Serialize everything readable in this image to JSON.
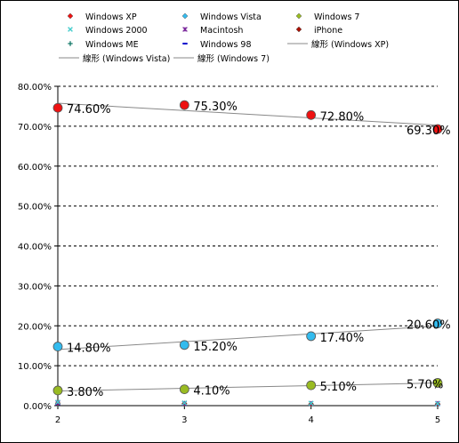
{
  "chart_data": {
    "type": "scatter",
    "title": "",
    "xlabel": "",
    "ylabel": "",
    "x": [
      2,
      3,
      4,
      5
    ],
    "x_ticks": [
      "2",
      "3",
      "4",
      "5"
    ],
    "xlim": [
      2,
      5
    ],
    "ylim": [
      0,
      0.8
    ],
    "y_ticks": [
      "0.00%",
      "10.00%",
      "20.00%",
      "30.00%",
      "40.00%",
      "50.00%",
      "60.00%",
      "70.00%",
      "80.00%"
    ],
    "grid": "horizontal dashed",
    "legend_position": "top",
    "series": [
      {
        "name": "Windows XP",
        "marker": "diamond",
        "color": "#ee1111",
        "values": [
          0.746,
          0.753,
          0.728,
          0.693
        ],
        "labels": [
          "74.60%",
          "75.30%",
          "72.80%",
          "69.30%"
        ]
      },
      {
        "name": "Windows Vista",
        "marker": "diamond",
        "color": "#33bbee",
        "values": [
          0.148,
          0.152,
          0.174,
          0.206
        ],
        "labels": [
          "14.80%",
          "15.20%",
          "17.40%",
          "20.60%"
        ]
      },
      {
        "name": "Windows 7",
        "marker": "diamond",
        "color": "#99bb22",
        "values": [
          0.038,
          0.041,
          0.051,
          0.057
        ],
        "labels": [
          "3.80%",
          "4.10%",
          "5.10%",
          "5.70%"
        ]
      },
      {
        "name": "Windows 2000",
        "marker": "x",
        "color": "#44cccc",
        "values": [
          0.009,
          0.007,
          0.006,
          0.005
        ],
        "labels": []
      },
      {
        "name": "Macintosh",
        "marker": "star",
        "color": "#772299",
        "values": [
          0.007,
          0.006,
          0.006,
          0.006
        ],
        "labels": []
      },
      {
        "name": "iPhone",
        "marker": "diamond",
        "color": "#aa1100",
        "values": [
          0.006,
          0.005,
          0.004,
          0.004
        ],
        "labels": []
      },
      {
        "name": "Windows ME",
        "marker": "plus",
        "color": "#117766",
        "values": [
          0.004,
          0.003,
          0.002,
          0.002
        ],
        "labels": []
      },
      {
        "name": "Windows 98",
        "marker": "dash",
        "color": "#0000cc",
        "values": [
          0.003,
          0.002,
          0.002,
          0.001
        ],
        "labels": []
      }
    ],
    "trendlines": [
      {
        "name": "線形 (Windows XP)",
        "of": "Windows XP",
        "type": "linear",
        "color": "#888888"
      },
      {
        "name": "線形 (Windows Vista)",
        "of": "Windows Vista",
        "type": "linear",
        "color": "#888888"
      },
      {
        "name": "線形 (Windows 7)",
        "of": "Windows 7",
        "type": "linear",
        "color": "#888888"
      }
    ]
  }
}
